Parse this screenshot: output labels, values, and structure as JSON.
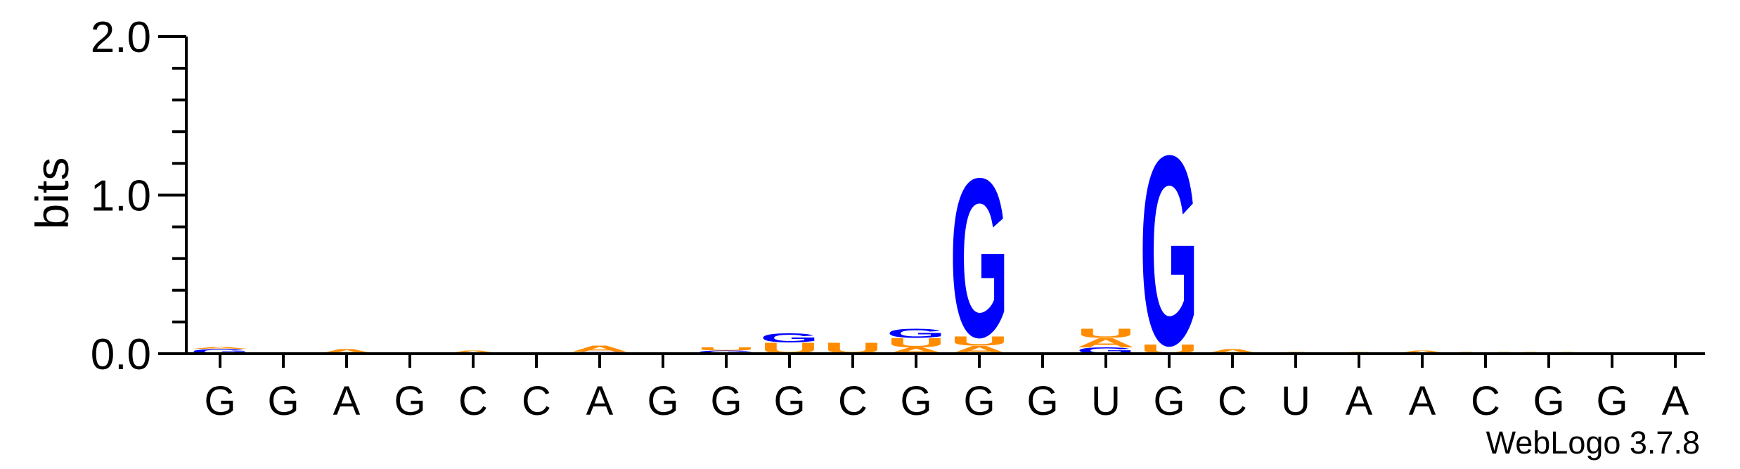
{
  "chart_data": {
    "type": "sequence_logo",
    "ylabel": "bits",
    "ylim": [
      0,
      2
    ],
    "yticks": [
      "0.0",
      "1.0",
      "2.0"
    ],
    "positions": [
      {
        "label": "G",
        "stack": [
          {
            "letter": "G",
            "bits": 0.03
          },
          {
            "letter": "A",
            "bits": 0.01
          }
        ]
      },
      {
        "label": "G",
        "stack": []
      },
      {
        "label": "A",
        "stack": [
          {
            "letter": "A",
            "bits": 0.03
          }
        ]
      },
      {
        "label": "G",
        "stack": []
      },
      {
        "label": "C",
        "stack": [
          {
            "letter": "A",
            "bits": 0.02
          }
        ]
      },
      {
        "label": "C",
        "stack": []
      },
      {
        "label": "A",
        "stack": [
          {
            "letter": "C",
            "bits": 0.01
          },
          {
            "letter": "A",
            "bits": 0.04
          }
        ]
      },
      {
        "label": "G",
        "stack": []
      },
      {
        "label": "G",
        "stack": [
          {
            "letter": "G",
            "bits": 0.02
          },
          {
            "letter": "U",
            "bits": 0.02
          }
        ]
      },
      {
        "label": "G",
        "stack": [
          {
            "letter": "U",
            "bits": 0.07
          },
          {
            "letter": "G",
            "bits": 0.06
          }
        ]
      },
      {
        "label": "C",
        "stack": [
          {
            "letter": "U",
            "bits": 0.07
          }
        ]
      },
      {
        "label": "G",
        "stack": [
          {
            "letter": "A",
            "bits": 0.04
          },
          {
            "letter": "U",
            "bits": 0.06
          },
          {
            "letter": "G",
            "bits": 0.06
          }
        ]
      },
      {
        "label": "G",
        "stack": [
          {
            "letter": "A",
            "bits": 0.05
          },
          {
            "letter": "U",
            "bits": 0.06
          },
          {
            "letter": "G",
            "bits": 1.03
          }
        ]
      },
      {
        "label": "G",
        "stack": []
      },
      {
        "label": "U",
        "stack": [
          {
            "letter": "G",
            "bits": 0.04
          },
          {
            "letter": "A",
            "bits": 0.06
          },
          {
            "letter": "U",
            "bits": 0.06
          }
        ]
      },
      {
        "label": "G",
        "stack": [
          {
            "letter": "U",
            "bits": 0.06
          },
          {
            "letter": "G",
            "bits": 1.23
          }
        ]
      },
      {
        "label": "C",
        "stack": [
          {
            "letter": "A",
            "bits": 0.03
          }
        ]
      },
      {
        "label": "U",
        "stack": [
          {
            "letter": "A",
            "bits": 0.01
          }
        ]
      },
      {
        "label": "A",
        "stack": [
          {
            "letter": "A",
            "bits": 0.01
          }
        ]
      },
      {
        "label": "A",
        "stack": [
          {
            "letter": "A",
            "bits": 0.02
          }
        ]
      },
      {
        "label": "C",
        "stack": [
          {
            "letter": "U",
            "bits": 0.01
          }
        ]
      },
      {
        "label": "G",
        "stack": [
          {
            "letter": "U",
            "bits": 0.01
          }
        ]
      },
      {
        "label": "G",
        "stack": []
      },
      {
        "label": "A",
        "stack": []
      }
    ],
    "colors": {
      "G": "#0000ff",
      "A": "#ff8c00",
      "U": "#ff8c00",
      "C": "#0000ff"
    },
    "watermark": "WebLogo 3.7.8"
  }
}
